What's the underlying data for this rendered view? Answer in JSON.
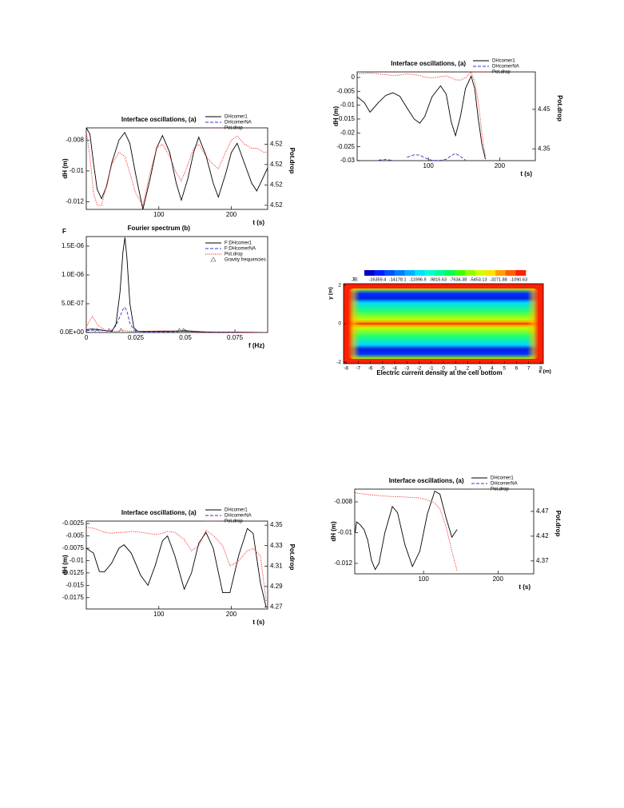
{
  "chart_data": [
    {
      "type": "line",
      "title": "Interface oscillations,  (a)",
      "xlabel": "t (s)",
      "ylabel": "dH (m)",
      "y2label": "Pot.drop",
      "x": [
        0,
        5,
        10,
        15,
        21,
        28,
        35,
        45,
        53,
        60,
        68,
        78,
        88,
        97,
        105,
        115,
        124,
        131,
        140,
        148,
        155,
        165,
        175,
        182,
        192,
        200,
        208,
        218,
        228,
        235,
        245,
        250
      ],
      "series": [
        {
          "name": "DHcomer1",
          "color": "#000000",
          "line_style": "solid",
          "values": [
            -0.0072,
            -0.0076,
            -0.0095,
            -0.0112,
            -0.0118,
            -0.011,
            -0.0095,
            -0.008,
            -0.0075,
            -0.0082,
            -0.0102,
            -0.0125,
            -0.0105,
            -0.0085,
            -0.0077,
            -0.0088,
            -0.0108,
            -0.0119,
            -0.0105,
            -0.0088,
            -0.0078,
            -0.009,
            -0.0108,
            -0.0117,
            -0.0102,
            -0.0088,
            -0.0082,
            -0.0095,
            -0.0108,
            -0.0113,
            -0.0103,
            -0.0098
          ]
        },
        {
          "name": "DHcomerNA",
          "color": "#3333cc",
          "line_style": "dashed",
          "values": [
            null,
            null,
            null,
            null,
            null,
            null,
            null,
            null,
            null,
            null,
            null,
            null,
            null,
            null,
            null,
            null,
            null,
            null,
            null,
            null,
            null,
            null,
            null,
            null,
            null,
            null,
            null,
            null,
            null,
            null,
            null,
            null
          ]
        },
        {
          "name": "Pot.drop",
          "color": "#ff0000",
          "line_style": "dotted",
          "axis": "y2",
          "values": [
            4.5218,
            4.5212,
            4.5203,
            4.52,
            4.52,
            4.5205,
            4.521,
            4.5213,
            4.5212,
            4.5208,
            4.5203,
            4.52,
            4.5208,
            4.5214,
            4.5215,
            4.5212,
            4.5208,
            4.5206,
            4.521,
            4.5214,
            4.5215,
            4.5212,
            4.521,
            4.5209,
            4.5213,
            4.5216,
            4.5217,
            4.5215,
            4.5214,
            4.5214,
            4.5213,
            4.5213
          ]
        }
      ],
      "xlim": [
        0,
        250
      ],
      "xticks": [
        100,
        200
      ],
      "ylim": [
        -0.0125,
        -0.0072
      ],
      "yticks": [
        -0.008,
        -0.01,
        -0.012
      ],
      "y2lim": [
        4.5199,
        4.5219
      ],
      "y2ticks": [
        {
          "value": 4.5215,
          "label": "4.52"
        },
        {
          "value": 4.521,
          "label": "4.52"
        },
        {
          "value": 4.5205,
          "label": "4.52"
        },
        {
          "value": 4.52,
          "label": "4.52"
        }
      ],
      "legend": "upper right"
    },
    {
      "type": "line",
      "title": "Fourier spectrum (b)",
      "xlabel": "f (Hz)",
      "ylabel": "F",
      "x": [
        0,
        0.003,
        0.006,
        0.01,
        0.013,
        0.015,
        0.017,
        0.0185,
        0.0195,
        0.0205,
        0.022,
        0.024,
        0.026,
        0.03,
        0.04,
        0.05,
        0.06,
        0.09
      ],
      "series": [
        {
          "name": "F:DHcomer1",
          "color": "#000000",
          "line_style": "solid",
          "values": [
            5e-08,
            6e-08,
            5e-08,
            3e-08,
            2e-08,
            1.5e-07,
            7e-07,
            1.4e-06,
            1.65e-06,
            1.3e-06,
            5e-07,
            8e-08,
            2e-08,
            2e-08,
            2e-08,
            3e-08,
            1e-08,
            0
          ]
        },
        {
          "name": "F:DHcomerNA",
          "color": "#3333cc",
          "line_style": "dashed",
          "values": [
            3e-08,
            4e-08,
            4e-08,
            3e-08,
            4e-08,
            1.2e-07,
            2.8e-07,
            4e-07,
            4.4e-07,
            3.7e-07,
            1.6e-07,
            4e-08,
            2e-08,
            1e-08,
            1e-08,
            2e-08,
            1e-08,
            0
          ]
        },
        {
          "name": "Pot.drop",
          "color": "#ff0000",
          "line_style": "dotted",
          "values": [
            1e-07,
            2.8e-07,
            1.2e-07,
            3e-08,
            2e-08,
            2e-08,
            3e-08,
            4e-08,
            4e-08,
            3e-08,
            2e-08,
            2e-08,
            2e-08,
            2e-08,
            3e-08,
            2e-08,
            1e-08,
            0
          ]
        },
        {
          "name": "Gravity frequencies",
          "color": "#555555",
          "marker": "triangle",
          "x": [
            0.0055,
            0.0115,
            0.0175,
            0.047,
            0.049
          ],
          "values": [
            3e-08,
            3e-08,
            3e-08,
            3e-08,
            3e-08
          ]
        }
      ],
      "xlim": [
        0,
        0.0915
      ],
      "xticks": [
        0,
        0.025,
        0.05,
        0.075
      ],
      "ylim": [
        0,
        1.667e-06
      ],
      "yticks": [
        {
          "value": 0,
          "label": "0.0E+00"
        },
        {
          "value": 5e-07,
          "label": "5.0E-07"
        },
        {
          "value": 1e-06,
          "label": "1.0E-06"
        },
        {
          "value": 1.5e-06,
          "label": "1.5E-06"
        }
      ],
      "legend": "upper right"
    },
    {
      "type": "line",
      "title": "Interface oscillations,  (a)",
      "xlabel": "t (s)",
      "ylabel": "dH (m)",
      "y2label": "Pot.drop",
      "x": [
        0,
        10,
        18,
        30,
        40,
        50,
        60,
        70,
        80,
        88,
        95,
        105,
        117,
        125,
        132,
        138,
        145,
        152,
        160,
        165,
        170,
        175,
        180
      ],
      "series": [
        {
          "name": "DHcomer1",
          "color": "#000000",
          "line_style": "solid",
          "values": [
            -0.007,
            -0.009,
            -0.0125,
            -0.009,
            -0.0065,
            -0.0055,
            -0.0068,
            -0.011,
            -0.015,
            -0.0165,
            -0.014,
            -0.007,
            -0.003,
            -0.006,
            -0.016,
            -0.021,
            -0.014,
            -0.004,
            0.0005,
            -0.004,
            -0.015,
            -0.024,
            -0.0295
          ]
        },
        {
          "name": "DHcomerNA",
          "color": "#3333cc",
          "line_style": "dashed",
          "values": [
            null,
            null,
            null,
            -0.0298,
            -0.0296,
            -0.0299,
            null,
            -0.0288,
            -0.0279,
            -0.028,
            -0.029,
            -0.0299,
            -0.0299,
            -0.0295,
            -0.0282,
            -0.0274,
            -0.0285,
            -0.0298,
            null,
            null,
            null,
            null,
            null
          ]
        },
        {
          "name": "Pot.drop",
          "color": "#ff0000",
          "line_style": "dotted",
          "axis": "y2",
          "values": [
            4.54,
            4.541,
            4.542,
            4.54,
            4.538,
            4.536,
            4.537,
            4.54,
            4.538,
            4.536,
            4.532,
            4.53,
            4.533,
            4.535,
            4.53,
            4.525,
            4.524,
            4.53,
            4.545,
            4.52,
            4.47,
            4.39,
            4.33
          ]
        }
      ],
      "xlim": [
        0,
        250
      ],
      "xticks": [
        100,
        200
      ],
      "ylim": [
        -0.03,
        0.002
      ],
      "yticks": [
        0,
        -0.005,
        -0.01,
        -0.015,
        -0.02,
        -0.025,
        -0.03
      ],
      "y2lim": [
        4.32,
        4.545
      ],
      "y2ticks": [
        4.45,
        4.35
      ],
      "legend": "upper right"
    },
    {
      "type": "contour",
      "title": "Electric current density at the cell bottom",
      "xlabel": "x (m)",
      "ylabel": "y (m)",
      "colorbar_label": "JB:",
      "levels": [
        -16359.4,
        -14178.1,
        -11996.9,
        -9815.63,
        -7634.38,
        -5453.13,
        -3271.88,
        -1090.63
      ],
      "colors": [
        "#0000c8",
        "#0020ff",
        "#0050ff",
        "#0080ff",
        "#00b0ff",
        "#00e0ff",
        "#00ffd0",
        "#00ff90",
        "#00ff50",
        "#40ff00",
        "#90ff00",
        "#d0ff00",
        "#ffe000",
        "#ffa000",
        "#ff6000",
        "#ff2000"
      ],
      "xlim": [
        -8.2,
        8.2
      ],
      "xticks": [
        -8,
        -7,
        -6,
        -5,
        -4,
        -3,
        -2,
        -1,
        0,
        1,
        2,
        3,
        4,
        5,
        6,
        7,
        8
      ],
      "ylim": [
        -2.08,
        2.08
      ],
      "yticks": [
        -2,
        0,
        2
      ]
    },
    {
      "type": "line",
      "title": "Interface oscillations,  (a)",
      "xlabel": "t (s)",
      "ylabel": "dH (m)",
      "y2label": "Pot.drop",
      "x": [
        0,
        10,
        18,
        25,
        35,
        45,
        52,
        62,
        75,
        85,
        95,
        105,
        112,
        122,
        135,
        145,
        155,
        165,
        175,
        188,
        198,
        210,
        222,
        230,
        240,
        248
      ],
      "series": [
        {
          "name": "DHcomer1",
          "color": "#000000",
          "line_style": "solid",
          "values": [
            -0.0075,
            -0.0085,
            -0.0122,
            -0.0123,
            -0.0105,
            -0.0075,
            -0.0068,
            -0.0085,
            -0.013,
            -0.015,
            -0.011,
            -0.006,
            -0.005,
            -0.009,
            -0.0158,
            -0.0125,
            -0.0065,
            -0.0043,
            -0.0075,
            -0.0165,
            -0.0165,
            -0.009,
            -0.0035,
            -0.0045,
            -0.0145,
            -0.0195
          ]
        },
        {
          "name": "DHcomerNA",
          "color": "#3333cc",
          "line_style": "dashed",
          "values": [
            null,
            null,
            null,
            null,
            null,
            null,
            null,
            null,
            null,
            null,
            null,
            null,
            null,
            null,
            null,
            null,
            null,
            null,
            null,
            null,
            null,
            null,
            null,
            null,
            null,
            null
          ]
        },
        {
          "name": "Pot.drop",
          "color": "#ff0000",
          "line_style": "dotted",
          "axis": "y2",
          "values": [
            4.348,
            4.347,
            4.345,
            4.343,
            4.342,
            4.343,
            4.343,
            4.344,
            4.343,
            4.342,
            4.341,
            4.342,
            4.344,
            4.343,
            4.336,
            4.325,
            4.33,
            4.345,
            4.34,
            4.33,
            4.31,
            4.315,
            4.325,
            4.327,
            4.32,
            4.275
          ]
        }
      ],
      "xlim": [
        0,
        250
      ],
      "xticks": [
        100,
        200
      ],
      "ylim": [
        -0.0198,
        -0.002
      ],
      "yticks": [
        -0.0025,
        -0.005,
        -0.0075,
        -0.01,
        -0.0125,
        -0.015,
        -0.0175
      ],
      "y2lim": [
        4.268,
        4.354
      ],
      "y2ticks": [
        4.35,
        4.33,
        4.31,
        4.29,
        4.27
      ],
      "legend": "upper right"
    },
    {
      "type": "line",
      "title": "Interface oscillations,  (a)",
      "xlabel": "t (s)",
      "ylabel": "dH (m)",
      "y2label": "Pot.drop",
      "x": [
        8,
        10,
        15,
        20,
        25,
        30,
        35,
        40,
        48,
        58,
        65,
        75,
        85,
        95,
        105,
        115,
        122,
        130,
        138,
        145
      ],
      "series": [
        {
          "name": "DHcomer1",
          "color": "#000000",
          "line_style": "solid",
          "values": [
            -0.01,
            -0.0093,
            -0.0095,
            -0.0098,
            -0.0105,
            -0.0118,
            -0.0124,
            -0.012,
            -0.01,
            -0.0083,
            -0.0087,
            -0.0108,
            -0.0122,
            -0.0112,
            -0.0088,
            -0.0073,
            -0.0075,
            -0.009,
            -0.0103,
            -0.0098
          ]
        },
        {
          "name": "DHcomerNA",
          "color": "#3333cc",
          "line_style": "dashed",
          "values": [
            null,
            null,
            null,
            null,
            null,
            null,
            null,
            null,
            null,
            null,
            null,
            null,
            null,
            null,
            null,
            null,
            null,
            null,
            null,
            null
          ]
        },
        {
          "name": "Pot.drop",
          "color": "#ff0000",
          "line_style": "dotted",
          "axis": "y2",
          "values": [
            4.508,
            4.507,
            4.506,
            4.505,
            4.504,
            4.503,
            4.503,
            4.502,
            4.501,
            4.5,
            4.5,
            4.499,
            4.498,
            4.497,
            4.493,
            4.487,
            4.475,
            4.44,
            4.39,
            4.35
          ]
        }
      ],
      "xlim": [
        7.5,
        248
      ],
      "xticks": [
        100,
        200
      ],
      "ylim": [
        -0.01268,
        -0.00717
      ],
      "yticks": [
        -0.008,
        -0.01,
        -0.012
      ],
      "y2lim": [
        4.344,
        4.515
      ],
      "y2ticks": [
        4.47,
        4.42,
        4.37
      ],
      "legend": "upper right"
    }
  ]
}
